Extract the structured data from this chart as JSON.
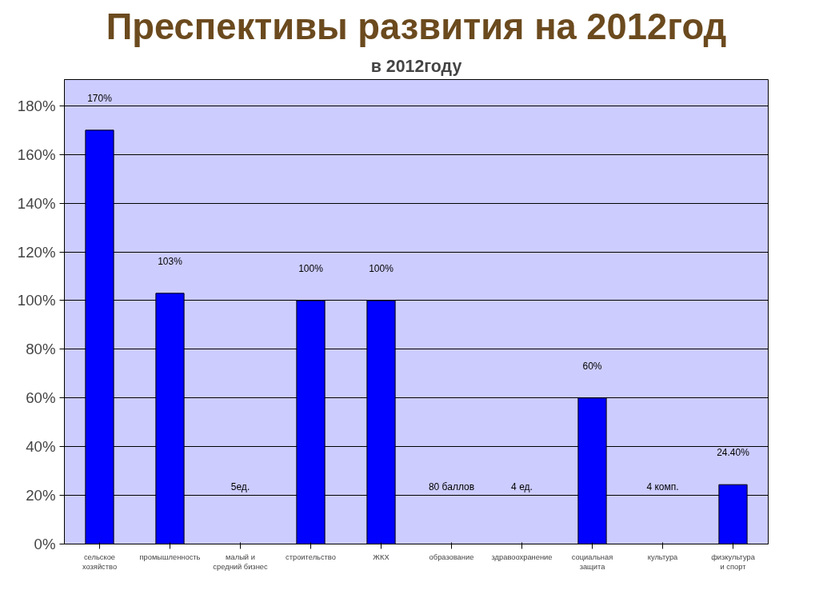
{
  "chart_data": {
    "type": "bar",
    "title": "Преспективы развития на 2012год",
    "subtitle": "в 2012году",
    "categories": [
      "сельское хозяйство",
      "промышленность",
      "малый и средний бизнес",
      "строительство",
      "ЖКХ",
      "образование",
      "здравоохранение",
      "социальная защита",
      "культура",
      "физкультура и спорт"
    ],
    "values": [
      170,
      103,
      null,
      100,
      100,
      null,
      null,
      60,
      null,
      24.4
    ],
    "value_labels": [
      "170%",
      "103%",
      null,
      "100%",
      "100%",
      null,
      null,
      "60%",
      null,
      "24.40%"
    ],
    "annotations": [
      "5ед.",
      "80 баллов",
      "4 ед.",
      "4 комп."
    ],
    "color": "#0000ff",
    "ylim": [
      0,
      180
    ],
    "yticks": [
      {
        "value": 0,
        "label": "0%"
      },
      {
        "value": 20,
        "label": "20%"
      },
      {
        "value": 40,
        "label": "40%"
      },
      {
        "value": 60,
        "label": "60%"
      },
      {
        "value": 80,
        "label": "80%"
      },
      {
        "value": 100,
        "label": "100%"
      },
      {
        "value": 120,
        "label": "120%"
      },
      {
        "value": 140,
        "label": "140%"
      },
      {
        "value": 160,
        "label": "160%"
      },
      {
        "value": 180,
        "label": "180%"
      }
    ],
    "grid": "y"
  }
}
